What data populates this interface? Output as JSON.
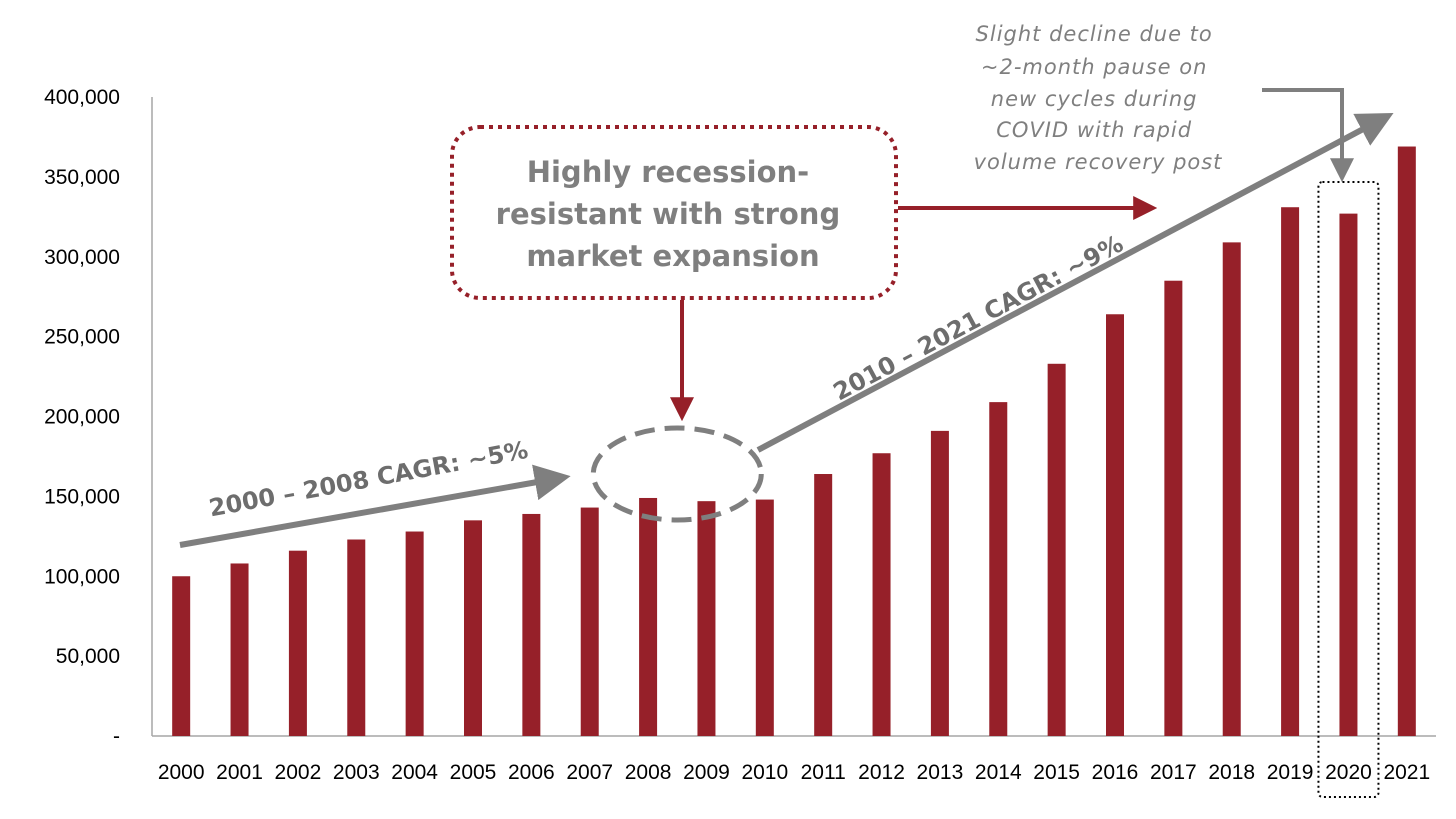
{
  "chart_data": {
    "type": "bar",
    "title": "",
    "xlabel": "",
    "ylabel": "",
    "categories": [
      "2000",
      "2001",
      "2002",
      "2003",
      "2004",
      "2005",
      "2006",
      "2007",
      "2008",
      "2009",
      "2010",
      "2011",
      "2012",
      "2013",
      "2014",
      "2015",
      "2016",
      "2017",
      "2018",
      "2019",
      "2020",
      "2021"
    ],
    "values": [
      100000,
      108000,
      116000,
      123000,
      128000,
      135000,
      139000,
      143000,
      149000,
      147000,
      148000,
      164000,
      177000,
      191000,
      209000,
      233000,
      264000,
      285000,
      309000,
      331000,
      327000,
      369000
    ],
    "ylim": [
      0,
      400000
    ],
    "yticks": [
      0,
      50000,
      100000,
      150000,
      200000,
      250000,
      300000,
      350000,
      400000
    ],
    "ytick_labels": [
      "-",
      "50,000",
      "100,000",
      "150,000",
      "200,000",
      "250,000",
      "300,000",
      "350,000",
      "400,000"
    ],
    "grid": false,
    "legend": "none",
    "bar_color": "#962029",
    "annotations": {
      "callout_box": [
        "Highly recession-",
        "resistant with strong",
        "market expansion"
      ],
      "cagr_early": "2000 – 2008 CAGR: ~5%",
      "cagr_late": "2010 – 2021 CAGR: ~9%",
      "covid_note": [
        "Slight decline due to",
        "~2-month pause on",
        "new cycles during",
        "COVID with rapid",
        "volume recovery post"
      ],
      "highlight_category": "2020",
      "circled_categories": [
        "2008",
        "2009"
      ]
    },
    "colors": {
      "accent": "#962029",
      "arrow_gray": "#7f7f7f",
      "callout_border": "#962029",
      "axis": "#a6a6a6"
    }
  }
}
